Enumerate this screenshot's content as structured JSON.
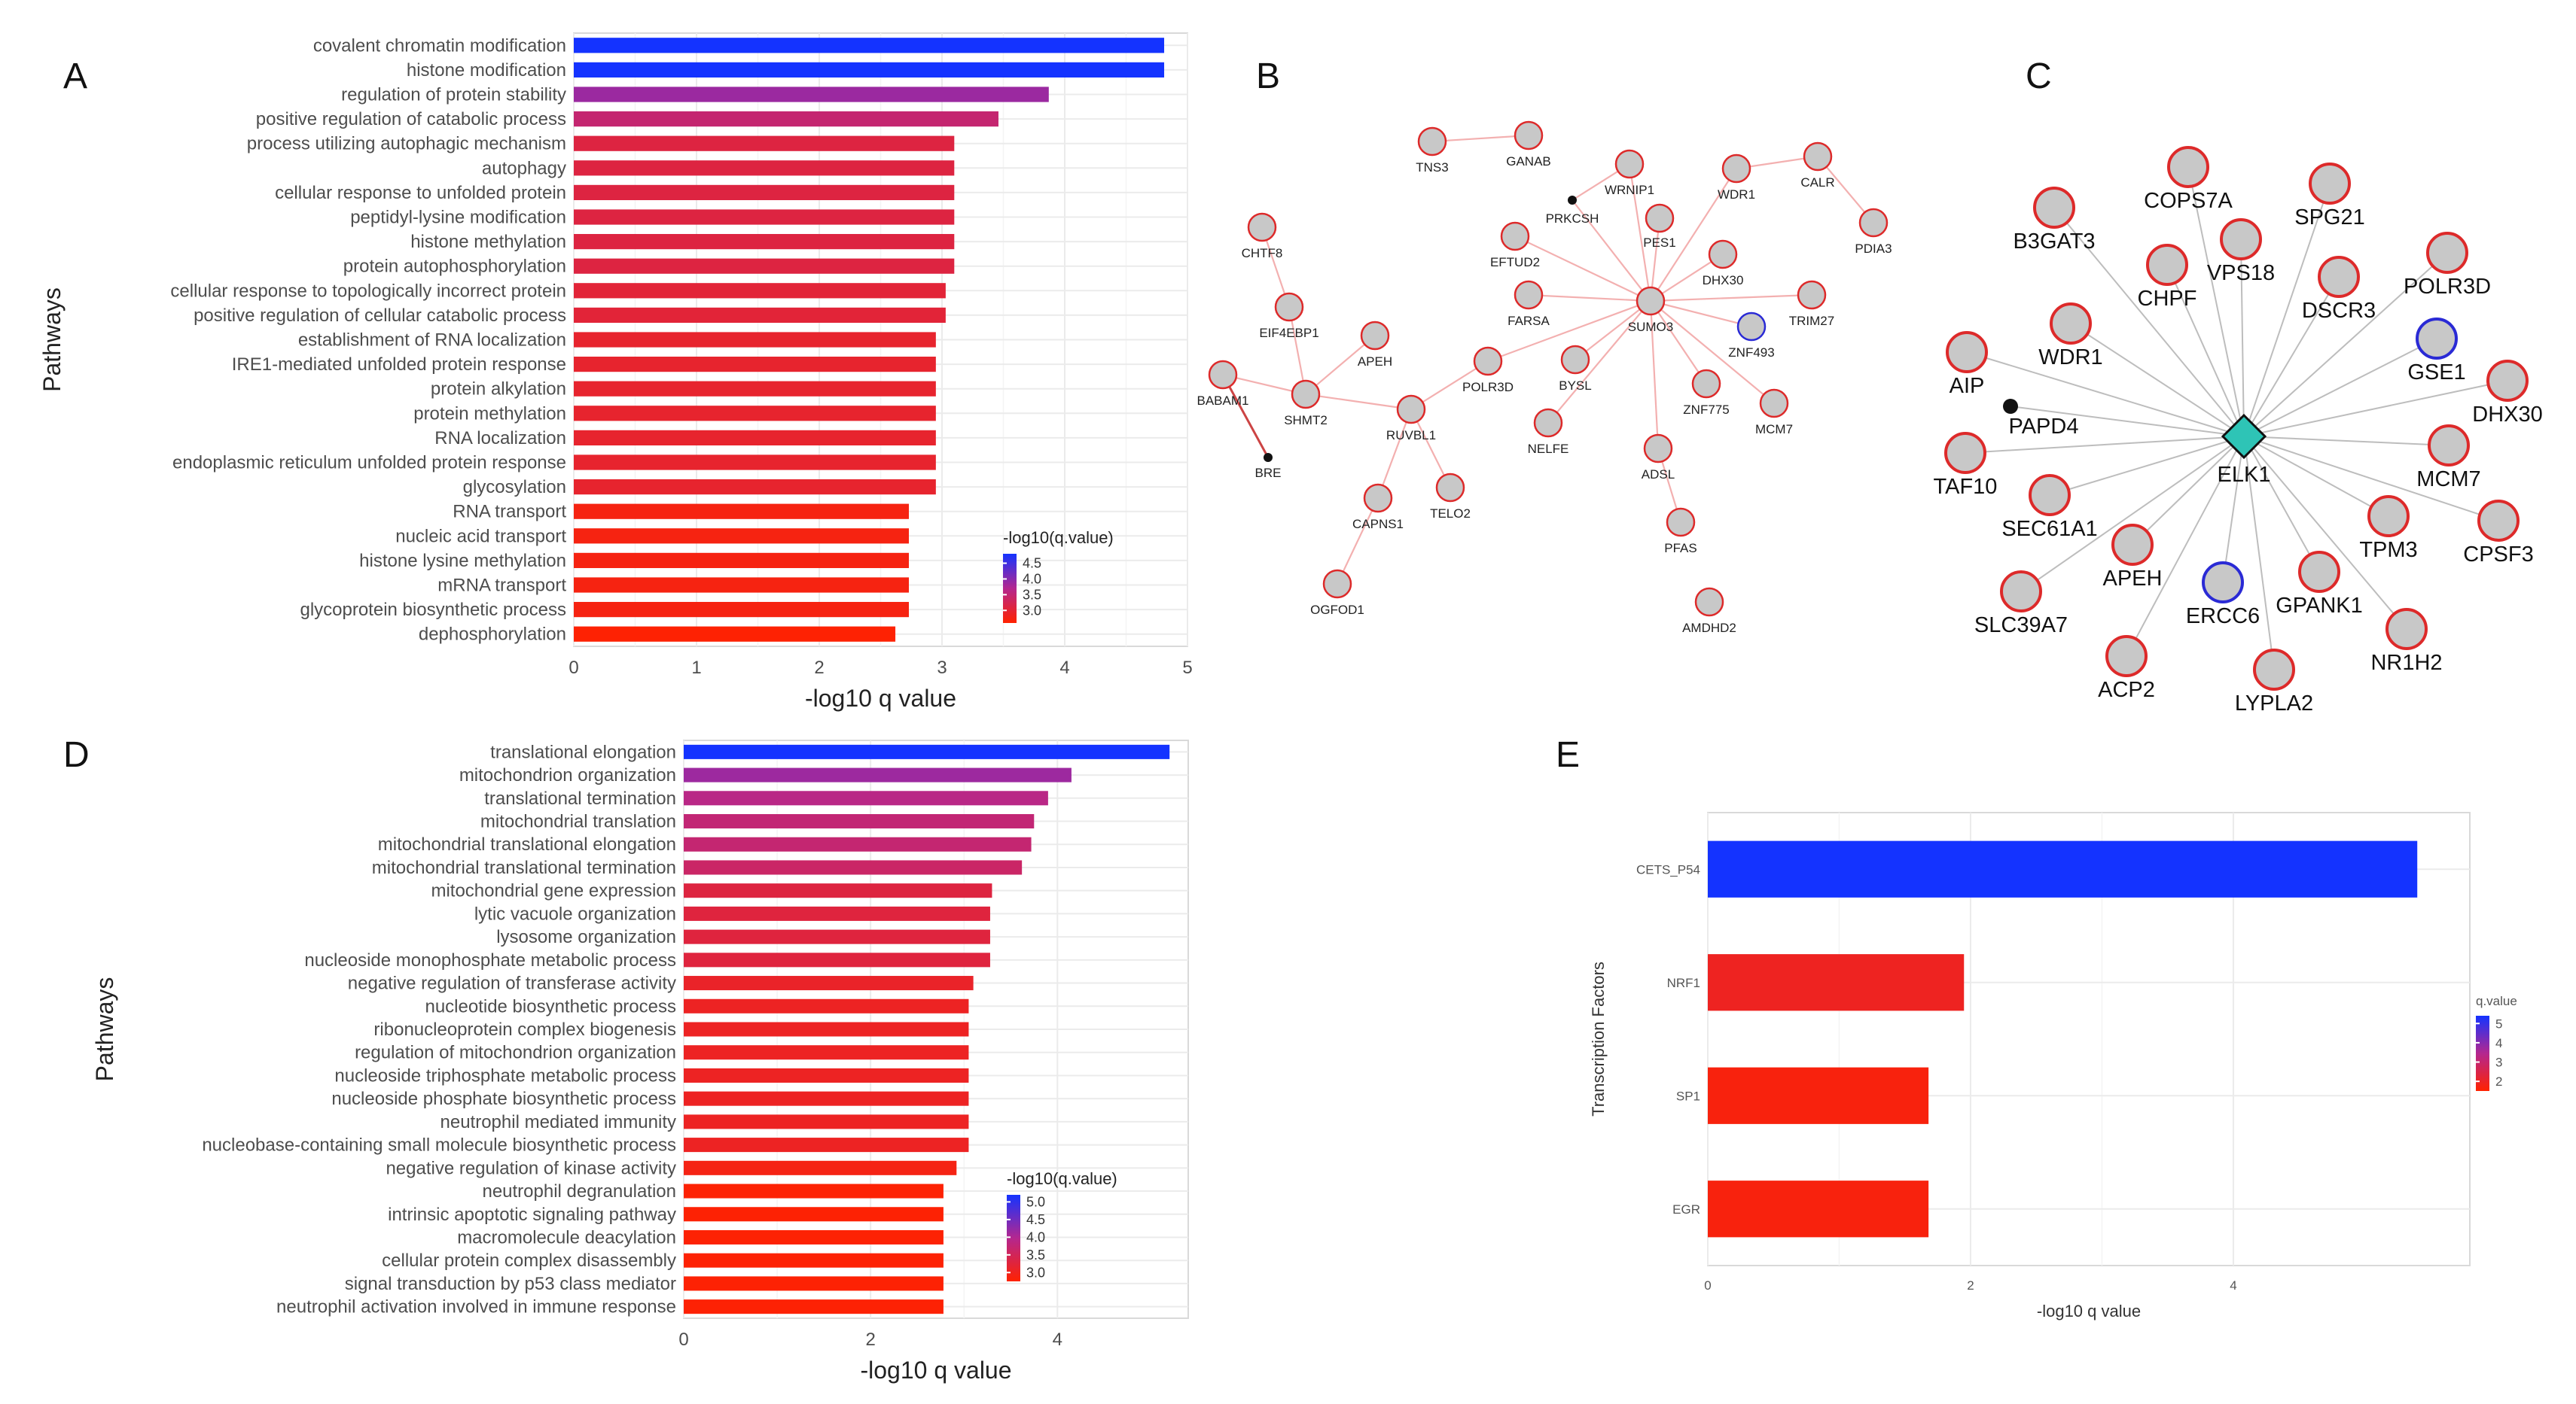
{
  "panel_labels": {
    "A": "A",
    "B": "B",
    "C": "C",
    "D": "D",
    "E": "E"
  },
  "colors": {
    "low": "#ff2200",
    "mid": "#b4278f",
    "high": "#1433ff",
    "node_fill": "#c8c8c8",
    "node_red": "#dd2a2a",
    "node_blue": "#2a2ad5",
    "hub": "#2ec4b6"
  },
  "chart_data": [
    {
      "id": "A",
      "type": "bar",
      "orientation": "horizontal",
      "title": "",
      "xlabel": "-log10 q value",
      "ylabel": "Pathways",
      "xlim": [
        0,
        5
      ],
      "xticks": [
        0,
        1,
        2,
        3,
        4,
        5
      ],
      "legend_title": "-log10(q.value)",
      "legend_ticks": [
        "4.5",
        "4.0",
        "3.5",
        "3.0"
      ],
      "legend_range": [
        2.6,
        4.8
      ],
      "legend_position": "bottom-right",
      "categories": [
        "covalent chromatin modification",
        "histone modification",
        "regulation of protein stability",
        "positive regulation of catabolic process",
        "process utilizing autophagic mechanism",
        "autophagy",
        "cellular response to unfolded protein",
        "peptidyl-lysine modification",
        "histone methylation",
        "protein autophosphorylation",
        "cellular response to topologically incorrect protein",
        "positive regulation of cellular catabolic process",
        "establishment of RNA localization",
        "IRE1-mediated unfolded protein response",
        "protein alkylation",
        "protein methylation",
        "RNA localization",
        "endoplasmic reticulum unfolded protein response",
        "glycosylation",
        "RNA transport",
        "nucleic acid transport",
        "histone lysine methylation",
        "mRNA transport",
        "glycoprotein biosynthetic process",
        "dephosphorylation"
      ],
      "values": [
        4.81,
        4.81,
        3.87,
        3.46,
        3.1,
        3.1,
        3.1,
        3.1,
        3.1,
        3.1,
        3.03,
        3.03,
        2.95,
        2.95,
        2.95,
        2.95,
        2.95,
        2.95,
        2.95,
        2.73,
        2.73,
        2.73,
        2.73,
        2.73,
        2.62
      ]
    },
    {
      "id": "D",
      "type": "bar",
      "orientation": "horizontal",
      "title": "",
      "xlabel": "-log10 q value",
      "ylabel": "Pathways",
      "xlim": [
        0,
        5.4
      ],
      "xticks": [
        0,
        2,
        4
      ],
      "legend_title": "-log10(q.value)",
      "legend_ticks": [
        "5.0",
        "4.5",
        "4.0",
        "3.5",
        "3.0"
      ],
      "legend_range": [
        2.75,
        5.2
      ],
      "legend_position": "bottom-right",
      "categories": [
        "translational elongation",
        "mitochondrion organization",
        "translational termination",
        "mitochondrial translation",
        "mitochondrial translational elongation",
        "mitochondrial translational termination",
        "mitochondrial gene expression",
        "lytic vacuole organization",
        "lysosome organization",
        "nucleoside monophosphate metabolic process",
        "negative regulation of transferase activity",
        "nucleotide biosynthetic process",
        "ribonucleoprotein complex biogenesis",
        "regulation of mitochondrion organization",
        "nucleoside triphosphate metabolic process",
        "nucleoside phosphate biosynthetic process",
        "neutrophil mediated immunity",
        "nucleobase-containing small molecule biosynthetic process",
        "negative regulation of kinase activity",
        "neutrophil degranulation",
        "intrinsic apoptotic signaling pathway",
        "macromolecule deacylation",
        "cellular protein complex disassembly",
        "signal transduction by p53 class mediator",
        "neutrophil activation involved in immune response"
      ],
      "values": [
        5.2,
        4.15,
        3.9,
        3.75,
        3.72,
        3.62,
        3.3,
        3.28,
        3.28,
        3.28,
        3.1,
        3.05,
        3.05,
        3.05,
        3.05,
        3.05,
        3.05,
        3.05,
        2.92,
        2.78,
        2.78,
        2.78,
        2.78,
        2.78,
        2.78
      ]
    },
    {
      "id": "E",
      "type": "bar",
      "orientation": "horizontal",
      "title": "",
      "xlabel": "-log10 q value",
      "ylabel": "Transcription Factors",
      "xlim": [
        0,
        5.8
      ],
      "xticks": [
        0,
        2,
        4
      ],
      "legend_title": "q.value",
      "legend_ticks": [
        "5",
        "4",
        "3",
        "2"
      ],
      "legend_range": [
        1.5,
        5.4
      ],
      "legend_position": "right",
      "categories": [
        "CETS_P54",
        "NRF1",
        "SP1",
        "EGR"
      ],
      "values": [
        5.4,
        1.95,
        1.68,
        1.68
      ]
    }
  ],
  "network_b": {
    "nodes": [
      {
        "label": "TNS3",
        "ring": "red"
      },
      {
        "label": "GANAB",
        "ring": "red"
      },
      {
        "label": "WRNIP1",
        "ring": "red"
      },
      {
        "label": "WDR1",
        "ring": "red"
      },
      {
        "label": "CALR",
        "ring": "red"
      },
      {
        "label": "PDIA3",
        "ring": "red"
      },
      {
        "label": "PRKCSH",
        "ring": "dot"
      },
      {
        "label": "PES1",
        "ring": "red"
      },
      {
        "label": "DHX30",
        "ring": "red"
      },
      {
        "label": "EFTUD2",
        "ring": "red"
      },
      {
        "label": "CHTF8",
        "ring": "red"
      },
      {
        "label": "FARSA",
        "ring": "red"
      },
      {
        "label": "SUMO3",
        "ring": "red"
      },
      {
        "label": "TRIM27",
        "ring": "red"
      },
      {
        "label": "ZNF493",
        "ring": "blue"
      },
      {
        "label": "EIF4EBP1",
        "ring": "red"
      },
      {
        "label": "APEH",
        "ring": "red"
      },
      {
        "label": "POLR3D",
        "ring": "red"
      },
      {
        "label": "BYSL",
        "ring": "red"
      },
      {
        "label": "ZNF775",
        "ring": "red"
      },
      {
        "label": "MCM7",
        "ring": "red"
      },
      {
        "label": "BABAM1",
        "ring": "red"
      },
      {
        "label": "SHMT2",
        "ring": "red"
      },
      {
        "label": "RUVBL1",
        "ring": "red"
      },
      {
        "label": "NELFE",
        "ring": "red"
      },
      {
        "label": "ADSL",
        "ring": "red"
      },
      {
        "label": "BRE",
        "ring": "dot"
      },
      {
        "label": "CAPNS1",
        "ring": "red"
      },
      {
        "label": "TELO2",
        "ring": "red"
      },
      {
        "label": "PFAS",
        "ring": "red"
      },
      {
        "label": "OGFOD1",
        "ring": "red"
      },
      {
        "label": "AMDHD2",
        "ring": "red"
      }
    ]
  },
  "network_c": {
    "hub": "ELK1",
    "nodes": [
      {
        "label": "COPS7A",
        "ring": "red"
      },
      {
        "label": "SPG21",
        "ring": "red"
      },
      {
        "label": "B3GAT3",
        "ring": "red"
      },
      {
        "label": "VPS18",
        "ring": "red"
      },
      {
        "label": "CHPF",
        "ring": "red"
      },
      {
        "label": "DSCR3",
        "ring": "red"
      },
      {
        "label": "POLR3D",
        "ring": "red"
      },
      {
        "label": "WDR1",
        "ring": "red"
      },
      {
        "label": "GSE1",
        "ring": "blue"
      },
      {
        "label": "AIP",
        "ring": "red"
      },
      {
        "label": "DHX30",
        "ring": "red"
      },
      {
        "label": "PAPD4",
        "ring": "dot"
      },
      {
        "label": "TAF10",
        "ring": "red"
      },
      {
        "label": "MCM7",
        "ring": "red"
      },
      {
        "label": "SEC61A1",
        "ring": "red"
      },
      {
        "label": "CPSF3",
        "ring": "red"
      },
      {
        "label": "TPM3",
        "ring": "red"
      },
      {
        "label": "APEH",
        "ring": "red"
      },
      {
        "label": "GPANK1",
        "ring": "red"
      },
      {
        "label": "ERCC6",
        "ring": "blue"
      },
      {
        "label": "SLC39A7",
        "ring": "red"
      },
      {
        "label": "NR1H2",
        "ring": "red"
      },
      {
        "label": "ACP2",
        "ring": "red"
      },
      {
        "label": "LYPLA2",
        "ring": "red"
      }
    ]
  }
}
